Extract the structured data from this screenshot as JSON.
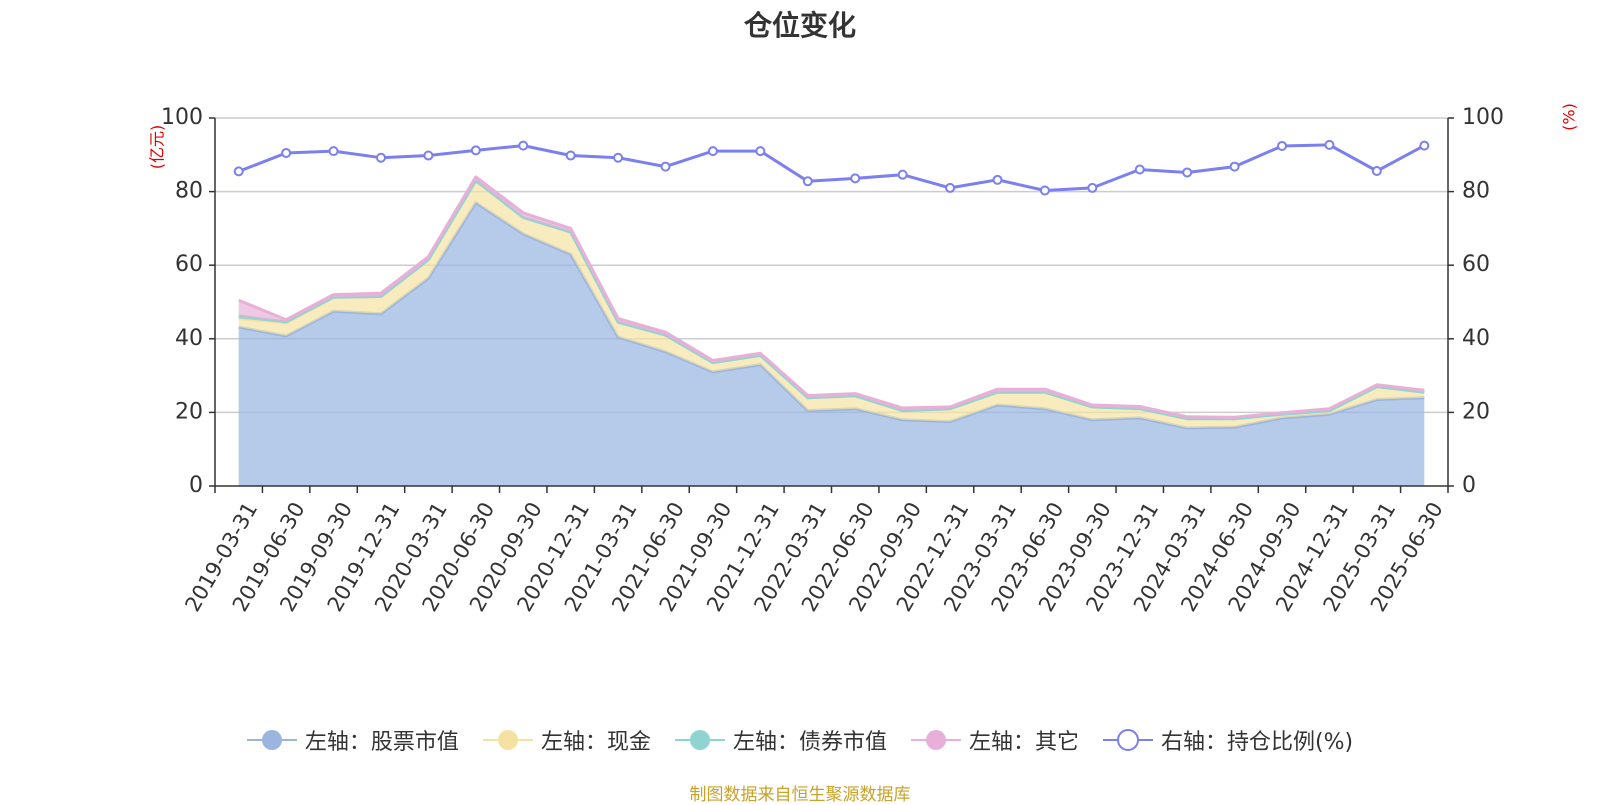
{
  "title": "仓位变化",
  "source": "制图数据来自恒生聚源数据库",
  "colors": {
    "stock": "#9ab5e0",
    "cash": "#f5e2a2",
    "bond": "#8fd4d0",
    "other": "#e8b0d8",
    "ratio": "#7b7fef",
    "unit": "#e00000"
  },
  "chart_data": {
    "type": "area",
    "title": "仓位变化",
    "categories": [
      "2019-03-31",
      "2019-06-30",
      "2019-09-30",
      "2019-12-31",
      "2020-03-31",
      "2020-06-30",
      "2020-09-30",
      "2020-12-31",
      "2021-03-31",
      "2021-06-30",
      "2021-09-30",
      "2021-12-31",
      "2022-03-31",
      "2022-06-30",
      "2022-09-30",
      "2022-12-31",
      "2023-03-31",
      "2023-06-30",
      "2023-09-30",
      "2023-12-31",
      "2024-03-31",
      "2024-06-30",
      "2024-09-30",
      "2024-12-31",
      "2025-03-31",
      "2025-06-30"
    ],
    "left_axis": {
      "unit": "(亿元)",
      "ylim": [
        0,
        100
      ],
      "ticks": [
        0,
        20,
        40,
        60,
        80,
        100
      ]
    },
    "right_axis": {
      "unit": "(%)",
      "ylim": [
        0,
        100
      ],
      "ticks": [
        0,
        20,
        40,
        60,
        80,
        100
      ]
    },
    "grid": true,
    "legend_position": "bottom",
    "series": [
      {
        "name": "左轴：股票市值",
        "axis": "left",
        "stacked": true,
        "type": "area",
        "values": [
          43.2,
          40.8,
          47.5,
          46.8,
          56.5,
          77.0,
          68.5,
          63.0,
          40.5,
          36.5,
          31.0,
          33.0,
          20.5,
          21.0,
          18.0,
          17.5,
          22.0,
          21.0,
          18.0,
          18.5,
          15.8,
          16.0,
          18.5,
          19.5,
          23.5,
          24.0
        ]
      },
      {
        "name": "左轴：现金",
        "axis": "left",
        "stacked": true,
        "type": "area",
        "values": [
          2.3,
          3.5,
          3.8,
          4.7,
          5.0,
          6.0,
          4.5,
          6.0,
          4.0,
          4.5,
          2.5,
          2.5,
          3.5,
          3.5,
          2.5,
          3.5,
          3.5,
          4.5,
          3.5,
          2.5,
          2.5,
          2.3,
          1.0,
          1.0,
          3.5,
          1.5
        ]
      },
      {
        "name": "左轴：债券市值",
        "axis": "left",
        "stacked": true,
        "type": "area",
        "values": [
          0.7,
          0.3,
          0,
          0,
          0,
          0,
          0,
          0,
          0,
          0,
          0,
          0,
          0,
          0,
          0,
          0,
          0,
          0,
          0,
          0,
          0,
          0,
          0,
          0,
          0,
          0
        ]
      },
      {
        "name": "左轴：其它",
        "axis": "left",
        "stacked": true,
        "type": "area",
        "values": [
          4.3,
          0.6,
          0.7,
          0.9,
          0.8,
          1.0,
          1.2,
          1.0,
          1.0,
          0.8,
          0.6,
          0.6,
          0.6,
          0.6,
          0.7,
          0.5,
          0.8,
          0.8,
          0.5,
          0.6,
          0.5,
          0.4,
          0.4,
          0.5,
          0.5,
          0.5
        ]
      },
      {
        "name": "右轴：持仓比例(%)",
        "axis": "right",
        "type": "line",
        "values": [
          85.5,
          90.5,
          91.0,
          89.2,
          89.8,
          91.2,
          92.5,
          89.8,
          89.2,
          86.8,
          91.0,
          91.0,
          82.8,
          83.6,
          84.6,
          81.0,
          83.2,
          80.3,
          81.0,
          86.0,
          85.2,
          86.8,
          92.4,
          92.7,
          85.6,
          92.5
        ]
      }
    ]
  }
}
